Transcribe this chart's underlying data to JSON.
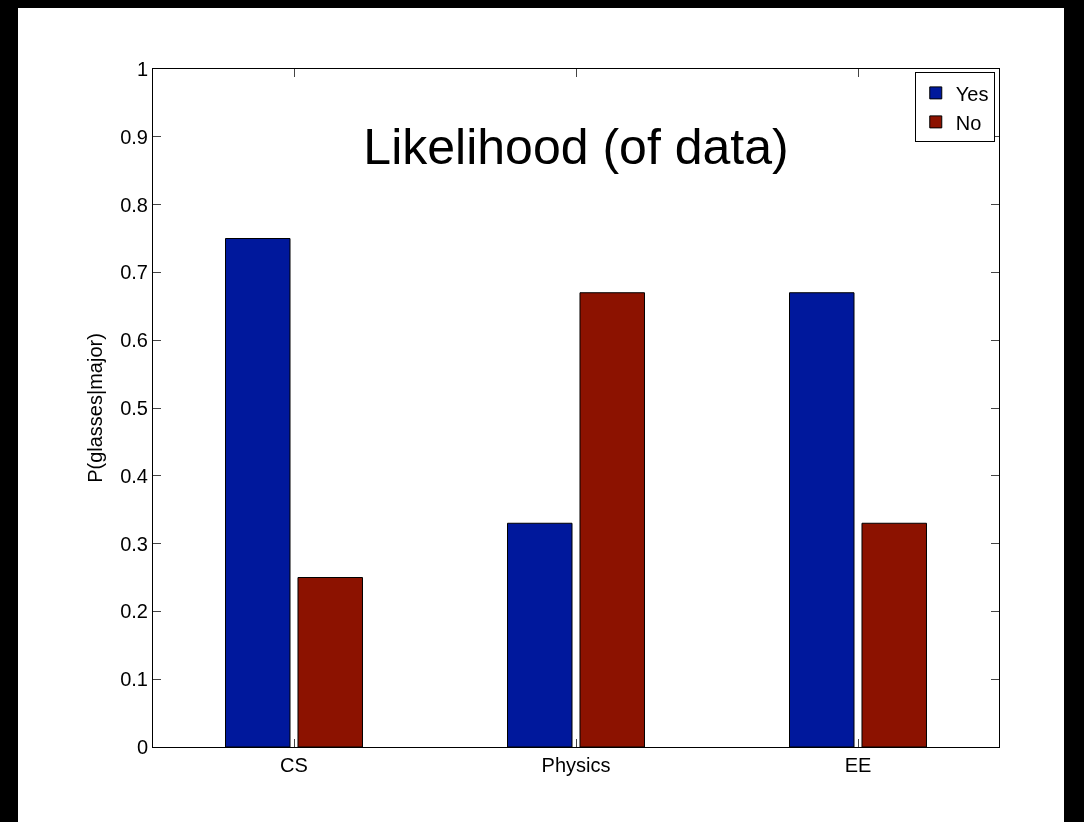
{
  "chart_data": {
    "type": "bar",
    "title": "Likelihood (of data)",
    "ylabel": "P(glasses|major)",
    "categories": [
      "CS",
      "Physics",
      "EE"
    ],
    "series": [
      {
        "name": "Yes",
        "color": "#00189c",
        "values": [
          0.75,
          0.33,
          0.67
        ]
      },
      {
        "name": "No",
        "color": "#8c1200",
        "values": [
          0.25,
          0.67,
          0.33
        ]
      }
    ],
    "ylim": [
      0,
      1
    ],
    "yticks": [
      0,
      0.1,
      0.2,
      0.3,
      0.4,
      0.5,
      0.6,
      0.7,
      0.8,
      0.9,
      1
    ],
    "grid": false,
    "legend": "top right"
  }
}
